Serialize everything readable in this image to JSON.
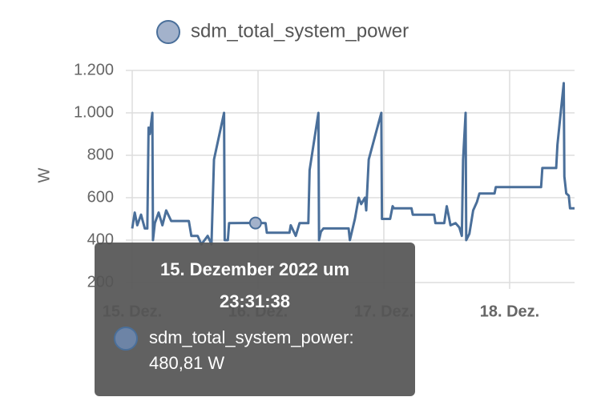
{
  "chart_data": {
    "type": "line",
    "y_label": "W",
    "xlim": [
      15,
      18.516
    ],
    "xticks": [
      {
        "value": 15,
        "label": "15. Dez."
      },
      {
        "value": 16,
        "label": "16. Dez."
      },
      {
        "value": 17,
        "label": "17. Dez."
      },
      {
        "value": 18,
        "label": "18. Dez."
      }
    ],
    "ylim": [
      200,
      1200
    ],
    "yticks": [
      200,
      400,
      600,
      800,
      {
        "value": 1000,
        "label": "1.000"
      },
      {
        "value": 1200,
        "label": "1.200"
      }
    ],
    "grid": true,
    "series": [
      {
        "name": "sdm_total_system_power",
        "color": "#4a6f9a",
        "x": [
          15.0,
          15.02,
          15.04,
          15.07,
          15.1,
          15.12,
          15.13,
          15.14,
          15.16,
          15.165,
          15.18,
          15.21,
          15.24,
          15.27,
          15.31,
          15.45,
          15.47,
          15.52,
          15.55,
          15.6,
          15.63,
          15.65,
          15.73,
          15.735,
          15.76,
          15.77,
          15.98,
          16.06,
          16.07,
          16.25,
          16.26,
          16.3,
          16.33,
          16.4,
          16.41,
          16.48,
          16.485,
          16.5,
          16.52,
          16.72,
          16.73,
          16.77,
          16.8,
          16.82,
          16.85,
          16.86,
          16.88,
          16.98,
          16.985,
          17.05,
          17.07,
          17.08,
          17.22,
          17.23,
          17.4,
          17.41,
          17.48,
          17.5,
          17.53,
          17.57,
          17.6,
          17.62,
          17.63,
          17.65,
          17.655,
          17.68,
          17.71,
          17.74,
          17.76,
          17.88,
          17.89,
          18.25,
          18.26,
          18.37,
          18.38,
          18.43,
          18.435,
          18.45,
          18.47,
          18.48,
          18.516
        ],
        "values": [
          455,
          530,
          470,
          520,
          455,
          455,
          930,
          900,
          1000,
          400,
          480,
          530,
          470,
          540,
          490,
          490,
          420,
          420,
          380,
          420,
          380,
          780,
          1000,
          400,
          400,
          480,
          481,
          480,
          435,
          435,
          470,
          420,
          480,
          480,
          730,
          1000,
          400,
          440,
          455,
          455,
          400,
          500,
          600,
          570,
          600,
          540,
          780,
          1000,
          500,
          500,
          560,
          550,
          550,
          520,
          520,
          480,
          480,
          560,
          470,
          480,
          460,
          420,
          780,
          1000,
          400,
          430,
          540,
          580,
          620,
          620,
          650,
          650,
          740,
          740,
          850,
          1140,
          700,
          620,
          610,
          550,
          550
        ]
      }
    ],
    "tooltip": {
      "title": [
        "15. Dezember 2022 um",
        "23:31:38"
      ],
      "label": "sdm_total_system_power:",
      "x": 15.98,
      "value": 480.81,
      "value_label": "480,81 W"
    }
  }
}
